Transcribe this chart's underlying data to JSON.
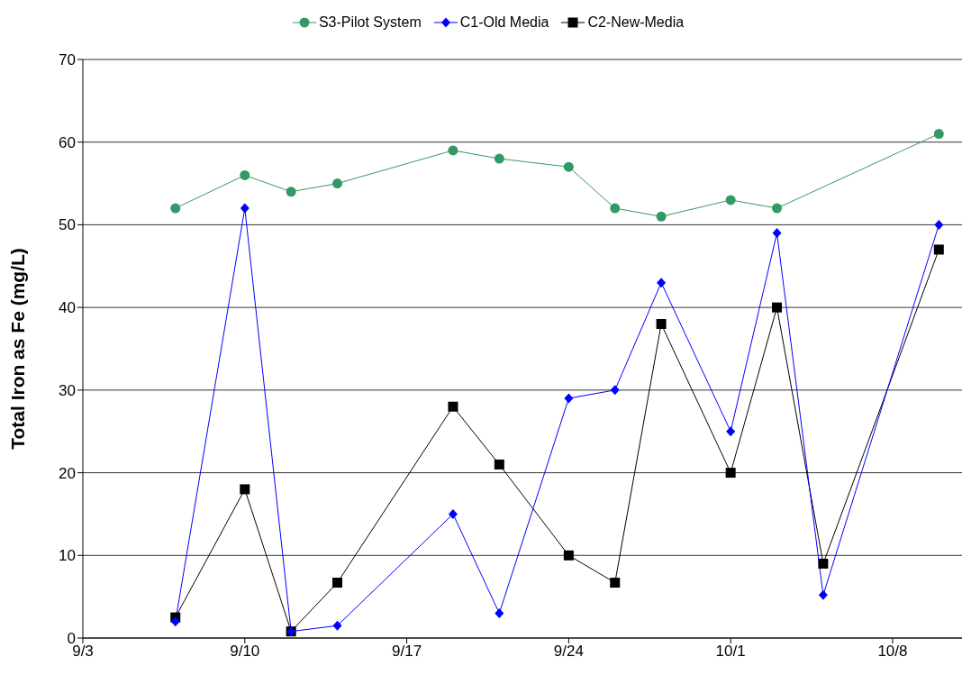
{
  "chart_data": {
    "type": "line",
    "ylabel": "Total Iron as Fe (mg/L)",
    "xlim": [
      "--09-03",
      "--10-11"
    ],
    "xticks": [
      {
        "value": "--09-03",
        "label": "9/3"
      },
      {
        "value": "--09-10",
        "label": "9/10"
      },
      {
        "value": "--09-17",
        "label": "9/17"
      },
      {
        "value": "--09-24",
        "label": "9/24"
      },
      {
        "value": "--10-01",
        "label": "10/1"
      },
      {
        "value": "--10-08",
        "label": "10/8"
      }
    ],
    "ylim": [
      0,
      70
    ],
    "yticks": [
      0,
      10,
      20,
      30,
      40,
      50,
      60,
      70
    ],
    "grid": "y",
    "legend": "top",
    "series": [
      {
        "name": "S3-Pilot System",
        "color": "#339966",
        "marker": "circle",
        "x": [
          "--09-07",
          "--09-10",
          "--09-12",
          "--09-14",
          "--09-19",
          "--09-21",
          "--09-24",
          "--09-26",
          "--09-28",
          "--10-01",
          "--10-03",
          "--10-10"
        ],
        "values": [
          52,
          56,
          54,
          55,
          59,
          58,
          57,
          52,
          51,
          53,
          52,
          61
        ]
      },
      {
        "name": "C1-Old Media",
        "color": "#0000ff",
        "marker": "diamond",
        "x": [
          "--09-07",
          "--09-10",
          "--09-12",
          "--09-14",
          "--09-19",
          "--09-21",
          "--09-24",
          "--09-26",
          "--09-28",
          "--10-01",
          "--10-03",
          "--10-05",
          "--10-10"
        ],
        "values": [
          2,
          52,
          0.8,
          1.5,
          15,
          3,
          29,
          30,
          43,
          25,
          49,
          5.2,
          50
        ]
      },
      {
        "name": "C2-New-Media",
        "color": "#000000",
        "marker": "square",
        "x": [
          "--09-07",
          "--09-10",
          "--09-12",
          "--09-14",
          "--09-19",
          "--09-21",
          "--09-24",
          "--09-26",
          "--09-28",
          "--10-01",
          "--10-03",
          "--10-05",
          "--10-10"
        ],
        "values": [
          2.5,
          18,
          0.8,
          6.7,
          28,
          21,
          10,
          6.7,
          38,
          20,
          40,
          9,
          47
        ]
      }
    ]
  }
}
